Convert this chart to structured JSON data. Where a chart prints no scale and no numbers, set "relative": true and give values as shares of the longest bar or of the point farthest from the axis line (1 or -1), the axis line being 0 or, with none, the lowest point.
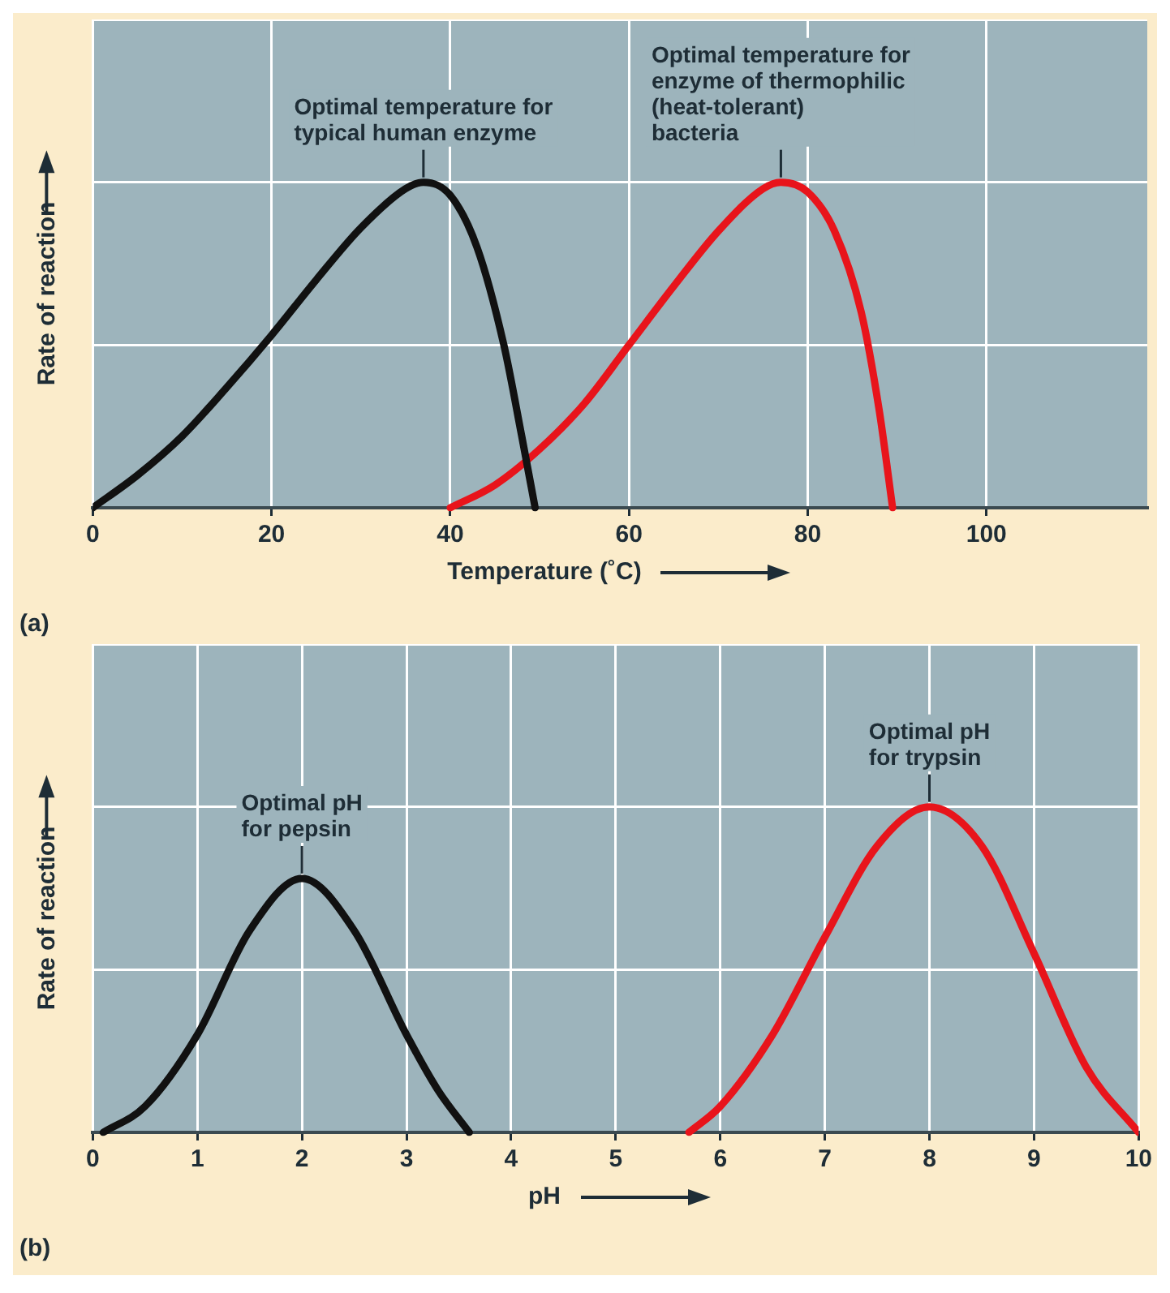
{
  "chart_data": [
    {
      "type": "line",
      "relative": true,
      "xlabel": "Temperature (˚C)",
      "ylabel": "Rate of reaction",
      "xlim": [
        0,
        118
      ],
      "xticks": [
        0,
        20,
        40,
        60,
        80,
        100
      ],
      "grid": true,
      "marker": "none",
      "series": [
        {
          "color": "#111111",
          "x": [
            0,
            5,
            10,
            15,
            20,
            25,
            30,
            35,
            37,
            40,
            43,
            46,
            48,
            49.5
          ],
          "values": [
            0,
            0.1,
            0.22,
            0.37,
            0.53,
            0.7,
            0.86,
            0.98,
            1,
            0.96,
            0.8,
            0.5,
            0.22,
            0
          ]
        },
        {
          "color": "#e8141b",
          "x": [
            40,
            45,
            50,
            55,
            60,
            65,
            70,
            75,
            77,
            80,
            83,
            86,
            88,
            89.5
          ],
          "values": [
            0,
            0.07,
            0.18,
            0.32,
            0.5,
            0.68,
            0.85,
            0.98,
            1,
            0.97,
            0.85,
            0.6,
            0.3,
            0
          ]
        }
      ],
      "annotations": [
        {
          "text": "Optimal temperature for\ntypical human enzyme",
          "x": 37,
          "y": 1
        },
        {
          "text": "Optimal temperature for\nenzyme of thermophilic\n(heat-tolerant)\nbacteria",
          "x": 77,
          "y": 1
        },
        "(a)"
      ]
    },
    {
      "type": "line",
      "relative": true,
      "xlabel": "pH",
      "ylabel": "Rate of reaction",
      "xlim": [
        0,
        10
      ],
      "xticks": [
        0,
        1,
        2,
        3,
        4,
        5,
        6,
        7,
        8,
        9,
        10
      ],
      "grid": true,
      "marker": "none",
      "series": [
        {
          "color": "#111111",
          "x": [
            0.1,
            0.5,
            1,
            1.5,
            2,
            2.5,
            3,
            3.3,
            3.6
          ],
          "values": [
            0,
            0.08,
            0.3,
            0.62,
            0.78,
            0.62,
            0.3,
            0.13,
            0
          ]
        },
        {
          "color": "#e8141b",
          "x": [
            5.7,
            6,
            6.5,
            7,
            7.5,
            8,
            8.5,
            9,
            9.5,
            10
          ],
          "values": [
            0,
            0.08,
            0.3,
            0.6,
            0.88,
            1,
            0.88,
            0.55,
            0.2,
            0
          ]
        }
      ],
      "annotations": [
        {
          "text": "Optimal pH\nfor pepsin",
          "x": 2,
          "y": 0.78
        },
        {
          "text": "Optimal pH\nfor trypsin",
          "x": 8,
          "y": 1
        },
        "(b)"
      ]
    }
  ]
}
